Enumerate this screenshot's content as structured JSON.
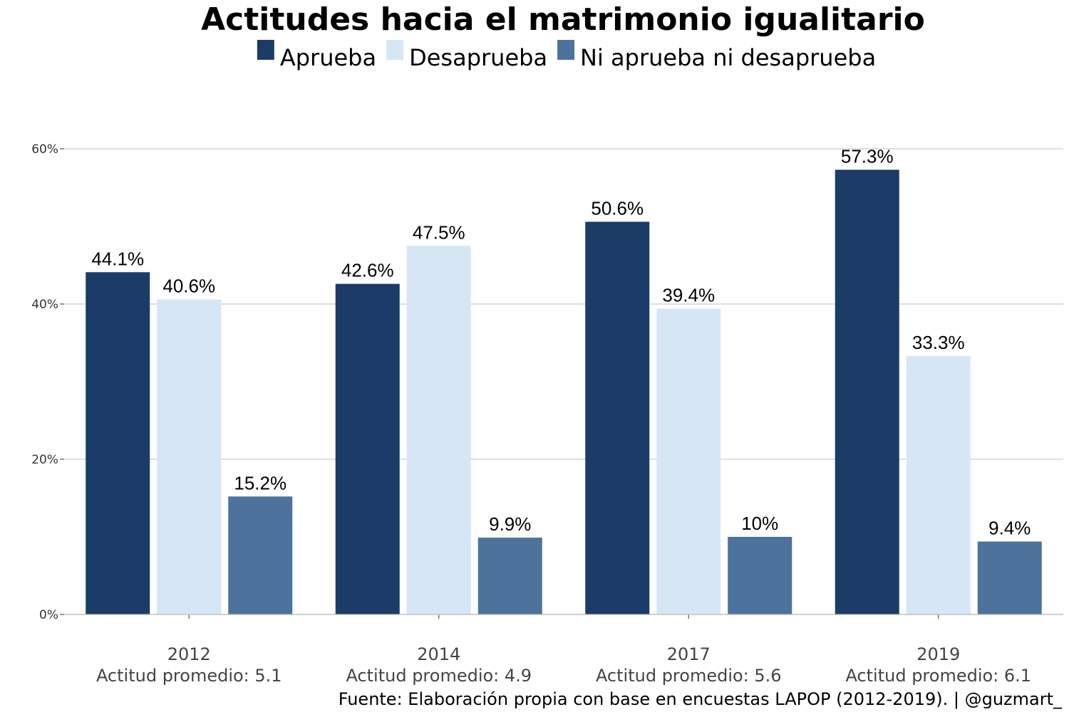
{
  "chart_data": {
    "type": "bar",
    "title": "Actitudes hacia el matrimonio igualitario",
    "categories": [
      "2012",
      "2014",
      "2017",
      "2019"
    ],
    "sublabels": [
      "Actitud promedio: 5.1",
      "Actitud promedio: 4.9",
      "Actitud promedio: 5.6",
      "Actitud promedio: 6.1"
    ],
    "series": [
      {
        "name": "Aprueba",
        "color": "#1b3c66",
        "values": [
          44.1,
          42.6,
          50.6,
          57.3
        ],
        "labels": [
          "44.1%",
          "42.6%",
          "50.6%",
          "57.3%"
        ]
      },
      {
        "name": "Desaprueba",
        "color": "#d6e6f5",
        "values": [
          40.6,
          47.5,
          39.4,
          33.3
        ],
        "labels": [
          "40.6%",
          "47.5%",
          "39.4%",
          "33.3%"
        ]
      },
      {
        "name": "Ni aprueba ni desaprueba",
        "color": "#4d739c",
        "values": [
          15.2,
          9.9,
          10,
          9.4
        ],
        "labels": [
          "15.2%",
          "9.9%",
          "10%",
          "9.4%"
        ]
      }
    ],
    "ylim": [
      0,
      60
    ],
    "yticks": [
      0,
      20,
      40,
      60
    ],
    "ytick_labels": [
      "0%",
      "20%",
      "40%",
      "60%"
    ],
    "grid": true,
    "legend_position": "top",
    "xlabel": "",
    "ylabel": ""
  },
  "caption": "Fuente: Elaboración propia con base en encuestas LAPOP (2012-2019). | @guzmart_"
}
